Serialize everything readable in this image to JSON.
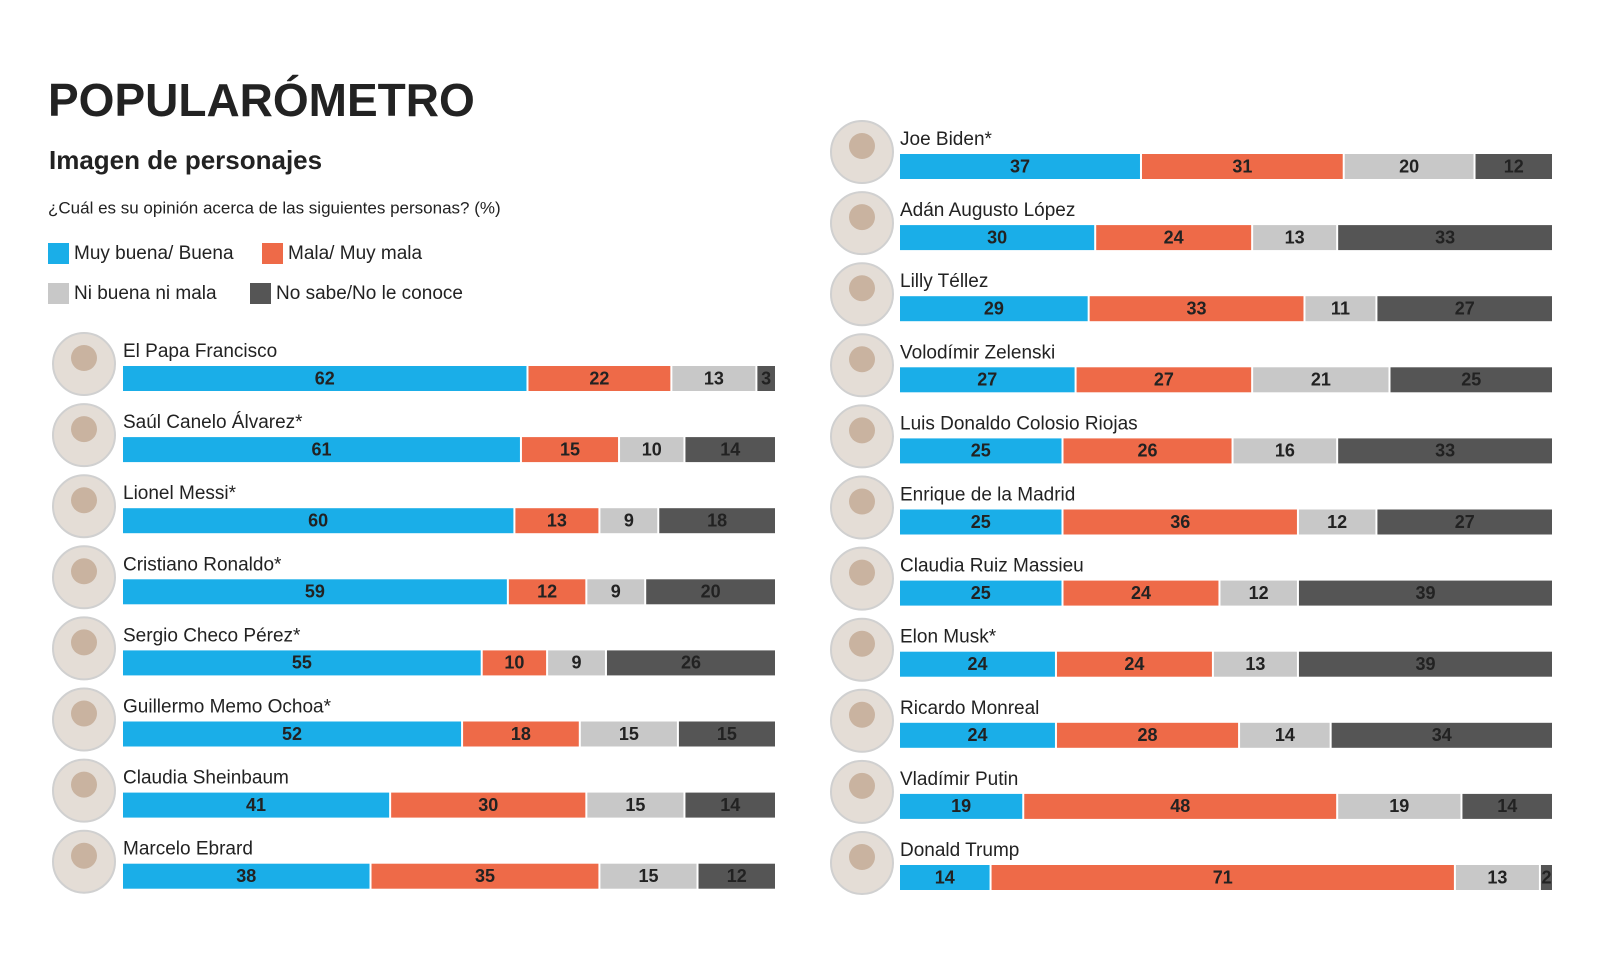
{
  "chart_data": {
    "type": "stacked-bar-horizontal",
    "title": "POPULARÓMETRO",
    "subtitle": "Imagen de personajes",
    "question": "¿Cuál es su opinión acerca de las siguientes personas? (%)",
    "xlim": [
      0,
      100
    ],
    "categories": [
      "El Papa Francisco",
      "Saúl Canelo Álvarez*",
      "Lionel Messi*",
      "Cristiano Ronaldo*",
      "Sergio Checo Pérez*",
      "Guillermo Memo Ochoa*",
      "Claudia Sheinbaum",
      "Marcelo Ebrard",
      "Joe Biden*",
      "Adán Augusto López",
      "Lilly Téllez",
      "Volodímir Zelenski",
      "Luis Donaldo Colosio Riojas",
      "Enrique de la Madrid",
      "Claudia Ruiz Massieu",
      "Elon Musk*",
      "Ricardo Monreal",
      "Vladímir Putin",
      "Donald Trump"
    ],
    "series": [
      {
        "name": "Muy buena/ Buena",
        "color": "#1aaee8",
        "values": [
          62,
          61,
          60,
          59,
          55,
          52,
          41,
          38,
          37,
          30,
          29,
          27,
          25,
          25,
          25,
          24,
          24,
          19,
          14
        ]
      },
      {
        "name": "Mala/ Muy mala",
        "color": "#ee6a48",
        "values": [
          22,
          15,
          13,
          12,
          10,
          18,
          30,
          35,
          31,
          24,
          33,
          27,
          26,
          36,
          24,
          24,
          28,
          48,
          71
        ]
      },
      {
        "name": "Ni buena ni mala",
        "color": "#c8c8c8",
        "values": [
          13,
          10,
          9,
          9,
          9,
          15,
          15,
          15,
          20,
          13,
          11,
          21,
          16,
          12,
          12,
          13,
          14,
          19,
          13
        ]
      },
      {
        "name": "No sabe/No le conoce",
        "color": "#555555",
        "values": [
          3,
          14,
          18,
          20,
          26,
          15,
          14,
          12,
          12,
          33,
          27,
          25,
          33,
          27,
          39,
          39,
          34,
          14,
          2
        ]
      }
    ]
  }
}
